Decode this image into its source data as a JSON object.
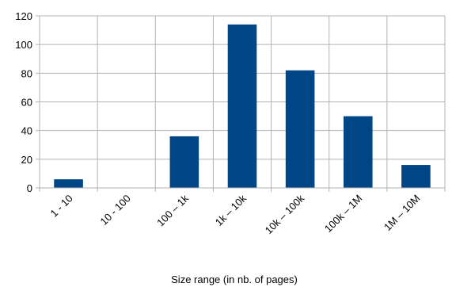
{
  "chart_data": {
    "type": "bar",
    "categories": [
      "1 - 10",
      "10 - 100",
      "100 – 1k",
      "1k – 10k",
      "10k – 100k",
      "100k – 1M",
      "1M – 10M"
    ],
    "values": [
      6,
      0,
      36,
      114,
      82,
      50,
      16
    ],
    "title": "",
    "xlabel": "Size range (in nb. of pages)",
    "ylabel": "",
    "ylim": [
      0,
      120
    ],
    "yticks": [
      0,
      20,
      40,
      60,
      80,
      100,
      120
    ],
    "grid": true,
    "legend": "none",
    "bar_color": "#004586",
    "grid_color": "#b3b3b3"
  }
}
